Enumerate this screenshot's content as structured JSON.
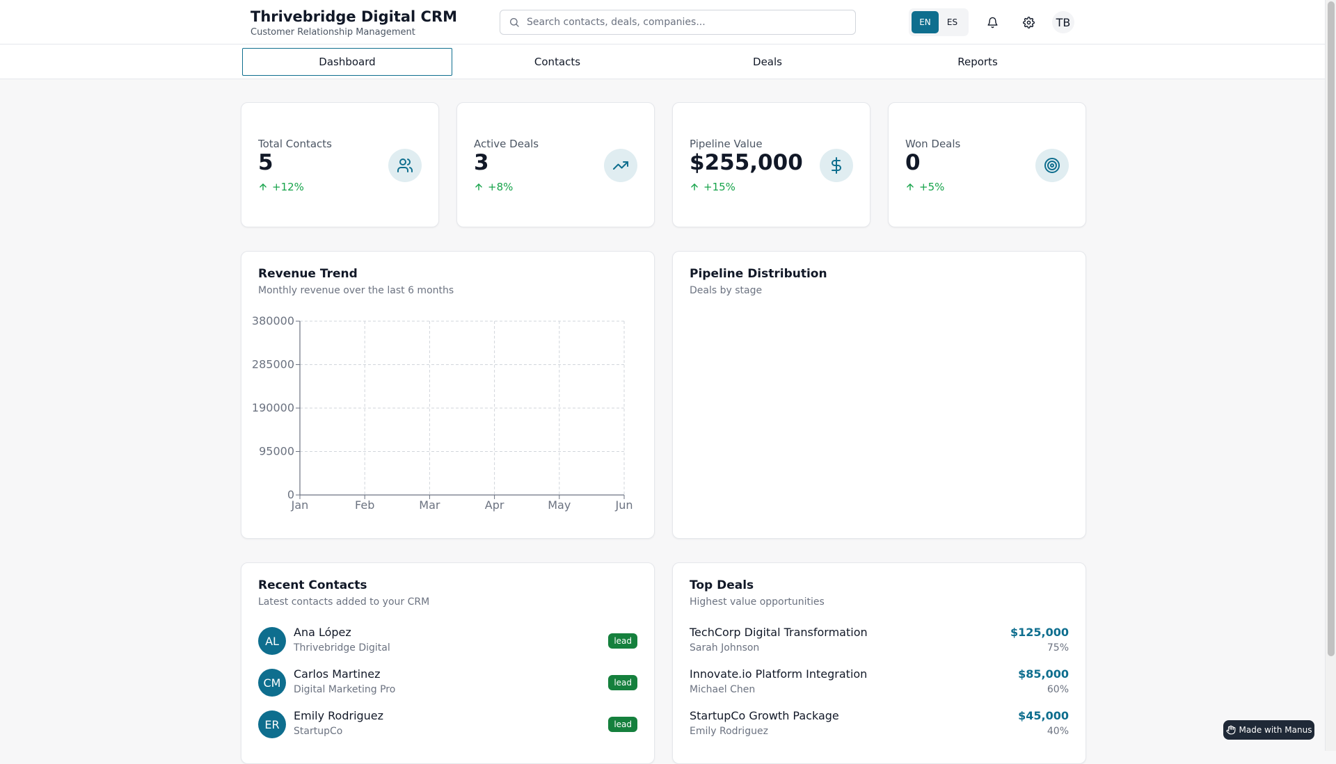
{
  "header": {
    "title": "Thrivebridge Digital CRM",
    "subtitle": "Customer Relationship Management",
    "search_placeholder": "Search contacts, deals, companies...",
    "languages": [
      "EN",
      "ES"
    ],
    "active_language": "EN",
    "user_initials": "TB"
  },
  "tabs": [
    "Dashboard",
    "Contacts",
    "Deals",
    "Reports"
  ],
  "stats": [
    {
      "label": "Total Contacts",
      "value": "5",
      "change": "+12%",
      "icon": "users-icon"
    },
    {
      "label": "Active Deals",
      "value": "3",
      "change": "+8%",
      "icon": "trending-up-icon"
    },
    {
      "label": "Pipeline Value",
      "value": "$255,000",
      "change": "+15%",
      "icon": "dollar-icon"
    },
    {
      "label": "Won Deals",
      "value": "0",
      "change": "+5%",
      "icon": "target-icon"
    }
  ],
  "revenue": {
    "title": "Revenue Trend",
    "subtitle": "Monthly revenue over the last 6 months"
  },
  "pipeline": {
    "title": "Pipeline Distribution",
    "subtitle": "Deals by stage"
  },
  "chart_data": {
    "type": "line",
    "title": "Revenue Trend",
    "categories": [
      "Jan",
      "Feb",
      "Mar",
      "Apr",
      "May",
      "Jun"
    ],
    "series": [],
    "yticks": [
      0,
      95000,
      190000,
      285000,
      380000
    ],
    "ylim": [
      0,
      380000
    ],
    "grid": true,
    "xlabel": "",
    "ylabel": ""
  },
  "recent_contacts": {
    "title": "Recent Contacts",
    "subtitle": "Latest contacts added to your CRM",
    "items": [
      {
        "initials": "AL",
        "name": "Ana López",
        "company": "Thrivebridge Digital",
        "status": "lead"
      },
      {
        "initials": "CM",
        "name": "Carlos Martinez",
        "company": "Digital Marketing Pro",
        "status": "lead"
      },
      {
        "initials": "ER",
        "name": "Emily Rodriguez",
        "company": "StartupCo",
        "status": "lead"
      }
    ]
  },
  "top_deals": {
    "title": "Top Deals",
    "subtitle": "Highest value opportunities",
    "items": [
      {
        "name": "TechCorp Digital Transformation",
        "owner": "Sarah Johnson",
        "amount": "$125,000",
        "probability": "75%"
      },
      {
        "name": "Innovate.io Platform Integration",
        "owner": "Michael Chen",
        "amount": "$85,000",
        "probability": "60%"
      },
      {
        "name": "StartupCo Growth Package",
        "owner": "Emily Rodriguez",
        "amount": "$45,000",
        "probability": "40%"
      }
    ]
  },
  "badge": {
    "label": "Made with Manus"
  },
  "colors": {
    "primary": "#0e6e8e",
    "positive": "#16a34a",
    "badge": "#15803d"
  }
}
